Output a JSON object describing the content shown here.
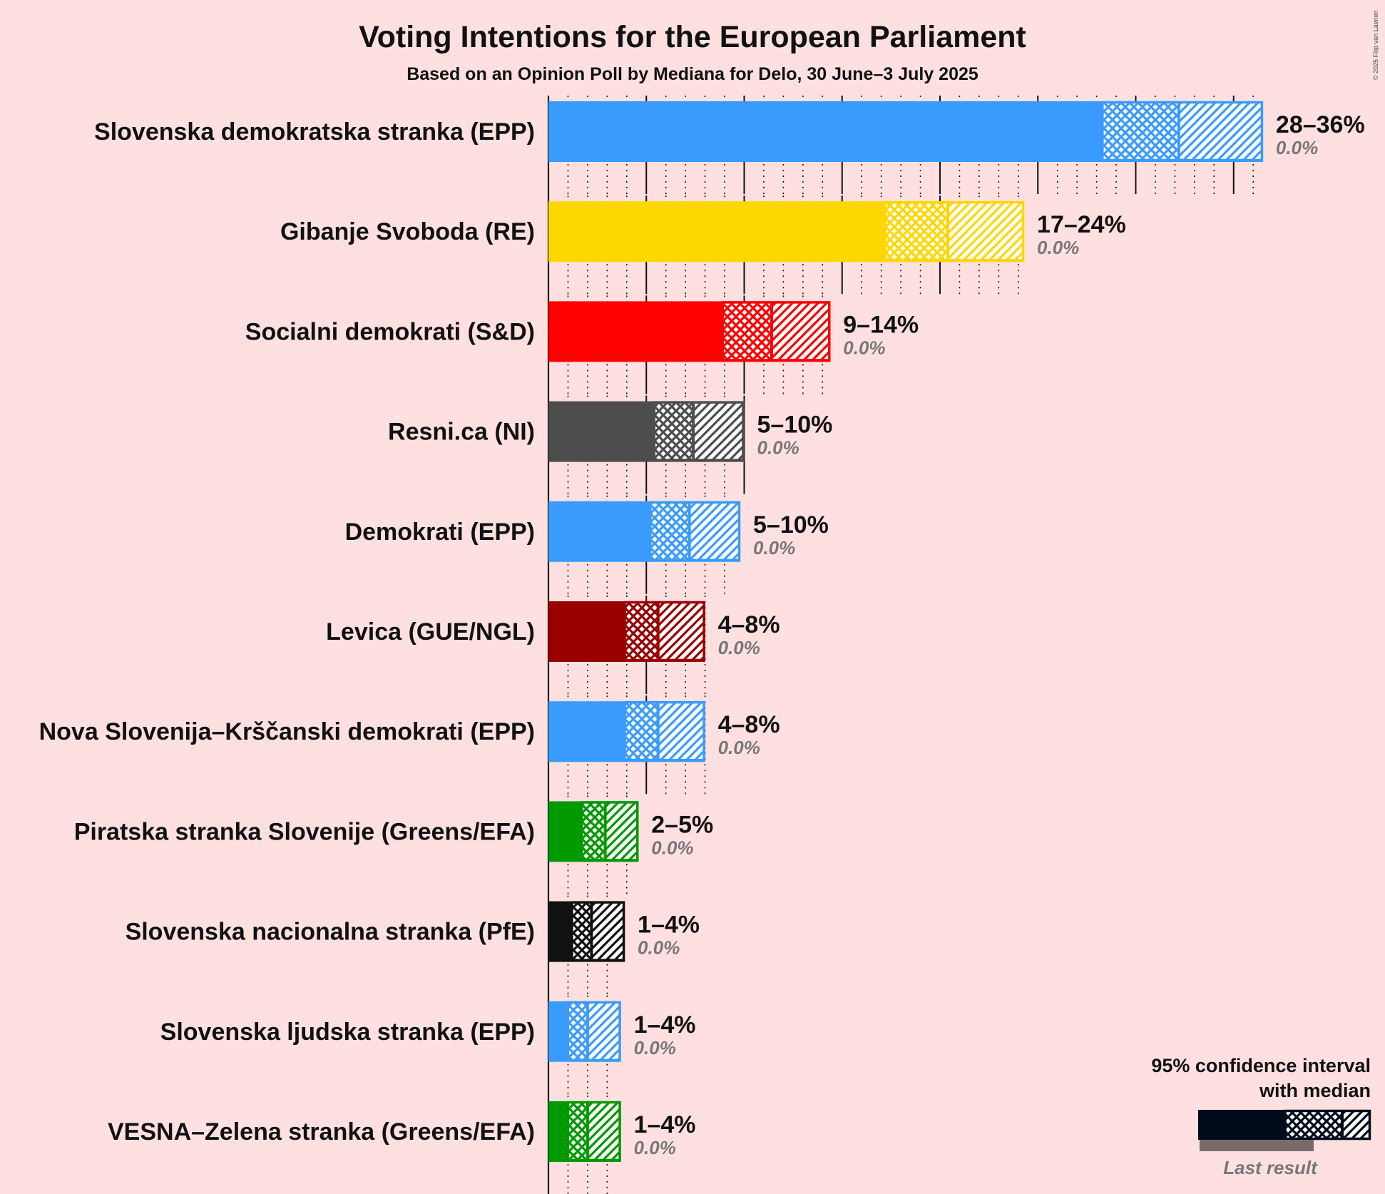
{
  "title": "Voting Intentions for the European Parliament",
  "subtitle": "Based on an Opinion Poll by Mediana for Delo, 30 June–3 July 2025",
  "copyright": "© 2025 Filip van Laenen",
  "chart_data": {
    "type": "bar",
    "orientation": "horizontal",
    "value_unit": "%",
    "xlim": [
      0,
      37
    ],
    "series": [
      {
        "party": "Slovenska demokratska stranka (EPP)",
        "color": "#3a9bff",
        "ci_low": 28.3,
        "median": 32.2,
        "ci_high": 36.5,
        "range_label": "28–36%",
        "last_result_label": "0.0%",
        "last_result": 0.0
      },
      {
        "party": "Gibanje Svoboda (RE)",
        "color": "#ffd700",
        "ci_low": 17.2,
        "median": 20.4,
        "ci_high": 24.3,
        "range_label": "17–24%",
        "last_result_label": "0.0%",
        "last_result": 0.0
      },
      {
        "party": "Socialni demokrati (S&D)",
        "color": "#ff0000",
        "ci_low": 8.9,
        "median": 11.4,
        "ci_high": 14.4,
        "range_label": "9–14%",
        "last_result_label": "0.0%",
        "last_result": 0.0
      },
      {
        "party": "Resni.ca (NI)",
        "color": "#4d4d4d",
        "ci_low": 5.4,
        "median": 7.4,
        "ci_high": 10.0,
        "range_label": "5–10%",
        "last_result_label": "0.0%",
        "last_result": 0.0
      },
      {
        "party": "Demokrati (EPP)",
        "color": "#3a9bff",
        "ci_low": 5.2,
        "median": 7.2,
        "ci_high": 9.8,
        "range_label": "5–10%",
        "last_result_label": "0.0%",
        "last_result": 0.0
      },
      {
        "party": "Levica (GUE/NGL)",
        "color": "#990000",
        "ci_low": 3.9,
        "median": 5.6,
        "ci_high": 8.0,
        "range_label": "4–8%",
        "last_result_label": "0.0%",
        "last_result": 0.0
      },
      {
        "party": "Nova Slovenija–Krščanski demokrati (EPP)",
        "color": "#3a9bff",
        "ci_low": 3.9,
        "median": 5.6,
        "ci_high": 8.0,
        "range_label": "4–8%",
        "last_result_label": "0.0%",
        "last_result": 0.0
      },
      {
        "party": "Piratska stranka Slovenije (Greens/EFA)",
        "color": "#009900",
        "ci_low": 1.7,
        "median": 2.9,
        "ci_high": 4.6,
        "range_label": "2–5%",
        "last_result_label": "0.0%",
        "last_result": 0.0
      },
      {
        "party": "Slovenska nacionalna stranka (PfE)",
        "color": "#111111",
        "ci_low": 1.2,
        "median": 2.2,
        "ci_high": 3.9,
        "range_label": "1–4%",
        "last_result_label": "0.0%",
        "last_result": 0.0
      },
      {
        "party": "Slovenska ljudska stranka (EPP)",
        "color": "#3a9bff",
        "ci_low": 1.0,
        "median": 2.0,
        "ci_high": 3.7,
        "range_label": "1–4%",
        "last_result_label": "0.0%",
        "last_result": 0.0
      },
      {
        "party": "VESNA–Zelena stranka (Greens/EFA)",
        "color": "#009900",
        "ci_low": 1.0,
        "median": 2.0,
        "ci_high": 3.7,
        "range_label": "1–4%",
        "last_result_label": "0.0%",
        "last_result": 0.0
      }
    ],
    "legend": {
      "title_line1": "95% confidence interval",
      "title_line2": "with median",
      "last_result_label": "Last result",
      "color": "#000a1a",
      "placement": "bottom-right"
    }
  }
}
